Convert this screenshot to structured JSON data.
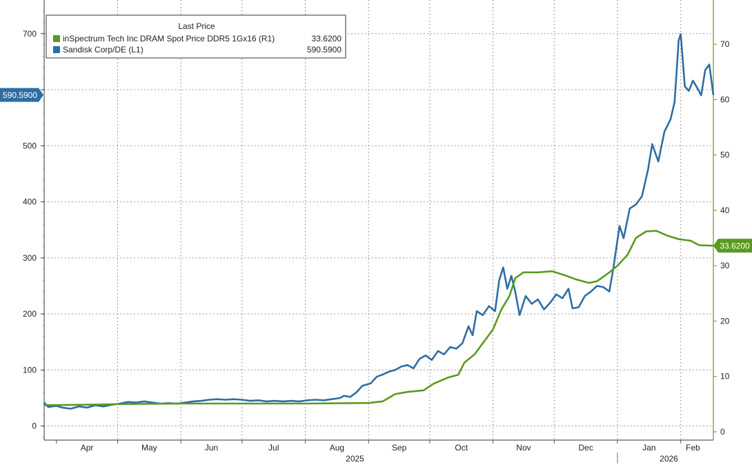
{
  "chart_data": {
    "type": "line",
    "title": "",
    "legend": {
      "header": "Last Price",
      "placement": "top-left",
      "entries": [
        {
          "name": "inSpectrum Tech Inc DRAM Spot Price DDR5 1Gx16  (R1)",
          "last": "33.6200",
          "color": "#5a9a1e"
        },
        {
          "name": "Sandisk Corp/DE  (L1)",
          "last": "590.5900",
          "color": "#2e6da4"
        }
      ]
    },
    "x_axis": {
      "months": [
        "Apr",
        "May",
        "Jun",
        "Jul",
        "Aug",
        "Sep",
        "Oct",
        "Nov",
        "Dec",
        "Jan",
        "Feb"
      ],
      "years": [
        "2025",
        "2026"
      ],
      "range": [
        "2025-03-26",
        "2026-02-17"
      ]
    },
    "y_left": {
      "range": [
        -25,
        760
      ],
      "ticks": [
        0,
        100,
        200,
        300,
        400,
        500,
        600,
        700
      ],
      "labeled_ticks": [
        "0",
        "100",
        "200",
        "300",
        "400",
        "500",
        "700"
      ],
      "series_ref": "L1"
    },
    "y_right": {
      "range": [
        -1.5,
        78
      ],
      "ticks": [
        0,
        10,
        20,
        30,
        40,
        50,
        60,
        70
      ],
      "labels": [
        "0",
        "10",
        "20",
        "30",
        "40",
        "50",
        "60",
        "70"
      ],
      "series_ref": "R1"
    },
    "last_value_tags": {
      "left": "590.5900",
      "right": "33.6200"
    },
    "grid": true,
    "series": [
      {
        "name": "Sandisk Corp/DE  (L1)",
        "axis": "left",
        "color": "#2e6da4",
        "points": [
          [
            "2025-03-26",
            42
          ],
          [
            "2025-03-28",
            34
          ],
          [
            "2025-04-01",
            36
          ],
          [
            "2025-04-04",
            33
          ],
          [
            "2025-04-08",
            31
          ],
          [
            "2025-04-12",
            35
          ],
          [
            "2025-04-16",
            33
          ],
          [
            "2025-04-20",
            37
          ],
          [
            "2025-04-24",
            35
          ],
          [
            "2025-04-28",
            38
          ],
          [
            "2025-05-02",
            40
          ],
          [
            "2025-05-06",
            43
          ],
          [
            "2025-05-10",
            42
          ],
          [
            "2025-05-14",
            44
          ],
          [
            "2025-05-18",
            42
          ],
          [
            "2025-05-22",
            40
          ],
          [
            "2025-05-26",
            41
          ],
          [
            "2025-05-30",
            40
          ],
          [
            "2025-06-03",
            42
          ],
          [
            "2025-06-07",
            44
          ],
          [
            "2025-06-11",
            45
          ],
          [
            "2025-06-15",
            47
          ],
          [
            "2025-06-19",
            48
          ],
          [
            "2025-06-23",
            47
          ],
          [
            "2025-06-27",
            48
          ],
          [
            "2025-07-01",
            47
          ],
          [
            "2025-07-05",
            45
          ],
          [
            "2025-07-09",
            46
          ],
          [
            "2025-07-13",
            44
          ],
          [
            "2025-07-17",
            45
          ],
          [
            "2025-07-21",
            44
          ],
          [
            "2025-07-25",
            45
          ],
          [
            "2025-07-29",
            44
          ],
          [
            "2025-08-02",
            46
          ],
          [
            "2025-08-06",
            47
          ],
          [
            "2025-08-10",
            46
          ],
          [
            "2025-08-14",
            48
          ],
          [
            "2025-08-18",
            50
          ],
          [
            "2025-08-20",
            54
          ],
          [
            "2025-08-23",
            52
          ],
          [
            "2025-08-26",
            60
          ],
          [
            "2025-08-29",
            72
          ],
          [
            "2025-09-02",
            76
          ],
          [
            "2025-09-05",
            88
          ],
          [
            "2025-09-08",
            92
          ],
          [
            "2025-09-11",
            97
          ],
          [
            "2025-09-14",
            100
          ],
          [
            "2025-09-17",
            106
          ],
          [
            "2025-09-20",
            109
          ],
          [
            "2025-09-23",
            103
          ],
          [
            "2025-09-26",
            120
          ],
          [
            "2025-09-29",
            126
          ],
          [
            "2025-10-02",
            118
          ],
          [
            "2025-10-05",
            134
          ],
          [
            "2025-10-08",
            128
          ],
          [
            "2025-10-11",
            141
          ],
          [
            "2025-10-14",
            138
          ],
          [
            "2025-10-17",
            148
          ],
          [
            "2025-10-20",
            178
          ],
          [
            "2025-10-22",
            162
          ],
          [
            "2025-10-24",
            205
          ],
          [
            "2025-10-27",
            198
          ],
          [
            "2025-10-30",
            214
          ],
          [
            "2025-11-02",
            205
          ],
          [
            "2025-11-04",
            260
          ],
          [
            "2025-11-06",
            283
          ],
          [
            "2025-11-08",
            245
          ],
          [
            "2025-11-10",
            268
          ],
          [
            "2025-11-12",
            238
          ],
          [
            "2025-11-14",
            198
          ],
          [
            "2025-11-17",
            232
          ],
          [
            "2025-11-20",
            218
          ],
          [
            "2025-11-23",
            226
          ],
          [
            "2025-11-26",
            208
          ],
          [
            "2025-11-29",
            220
          ],
          [
            "2025-12-02",
            235
          ],
          [
            "2025-12-05",
            228
          ],
          [
            "2025-12-08",
            245
          ],
          [
            "2025-12-10",
            210
          ],
          [
            "2025-12-13",
            212
          ],
          [
            "2025-12-16",
            232
          ],
          [
            "2025-12-19",
            240
          ],
          [
            "2025-12-22",
            250
          ],
          [
            "2025-12-25",
            248
          ],
          [
            "2025-12-28",
            240
          ],
          [
            "2025-12-30",
            282
          ],
          [
            "2026-01-02",
            357
          ],
          [
            "2026-01-04",
            335
          ],
          [
            "2026-01-07",
            388
          ],
          [
            "2026-01-10",
            395
          ],
          [
            "2026-01-13",
            410
          ],
          [
            "2026-01-16",
            458
          ],
          [
            "2026-01-18",
            503
          ],
          [
            "2026-01-21",
            472
          ],
          [
            "2026-01-24",
            525
          ],
          [
            "2026-01-27",
            547
          ],
          [
            "2026-01-29",
            578
          ],
          [
            "2026-01-31",
            688
          ],
          [
            "2026-02-01",
            699
          ],
          [
            "2026-02-03",
            606
          ],
          [
            "2026-02-05",
            598
          ],
          [
            "2026-02-07",
            616
          ],
          [
            "2026-02-09",
            604
          ],
          [
            "2026-02-11",
            590
          ],
          [
            "2026-02-13",
            635
          ],
          [
            "2026-02-15",
            645
          ],
          [
            "2026-02-17",
            590.59
          ]
        ]
      },
      {
        "name": "inSpectrum Tech Inc DRAM Spot Price DDR5 1Gx16  (R1)",
        "axis": "right",
        "color": "#5a9a1e",
        "points": [
          [
            "2025-03-26",
            4.8
          ],
          [
            "2025-04-20",
            4.9
          ],
          [
            "2025-05-01",
            5.0
          ],
          [
            "2025-06-01",
            5.1
          ],
          [
            "2025-07-01",
            5.1
          ],
          [
            "2025-08-01",
            5.1
          ],
          [
            "2025-09-01",
            5.2
          ],
          [
            "2025-09-08",
            5.5
          ],
          [
            "2025-09-14",
            6.8
          ],
          [
            "2025-09-20",
            7.2
          ],
          [
            "2025-09-28",
            7.5
          ],
          [
            "2025-10-03",
            8.7
          ],
          [
            "2025-10-10",
            9.8
          ],
          [
            "2025-10-15",
            10.3
          ],
          [
            "2025-10-18",
            12.5
          ],
          [
            "2025-10-23",
            14.0
          ],
          [
            "2025-10-28",
            16.5
          ],
          [
            "2025-11-01",
            18.5
          ],
          [
            "2025-11-05",
            22.0
          ],
          [
            "2025-11-09",
            24.5
          ],
          [
            "2025-11-12",
            27.8
          ],
          [
            "2025-11-16",
            28.8
          ],
          [
            "2025-11-23",
            28.8
          ],
          [
            "2025-11-30",
            29.0
          ],
          [
            "2025-12-06",
            28.3
          ],
          [
            "2025-12-12",
            27.5
          ],
          [
            "2025-12-18",
            26.9
          ],
          [
            "2025-12-22",
            27.2
          ],
          [
            "2025-12-27",
            28.5
          ],
          [
            "2026-01-01",
            30.0
          ],
          [
            "2026-01-06",
            32.0
          ],
          [
            "2026-01-10",
            35.0
          ],
          [
            "2026-01-15",
            36.2
          ],
          [
            "2026-01-20",
            36.3
          ],
          [
            "2026-01-25",
            35.5
          ],
          [
            "2026-01-31",
            34.8
          ],
          [
            "2026-02-06",
            34.5
          ],
          [
            "2026-02-10",
            33.7
          ],
          [
            "2026-02-17",
            33.62
          ]
        ]
      }
    ]
  }
}
